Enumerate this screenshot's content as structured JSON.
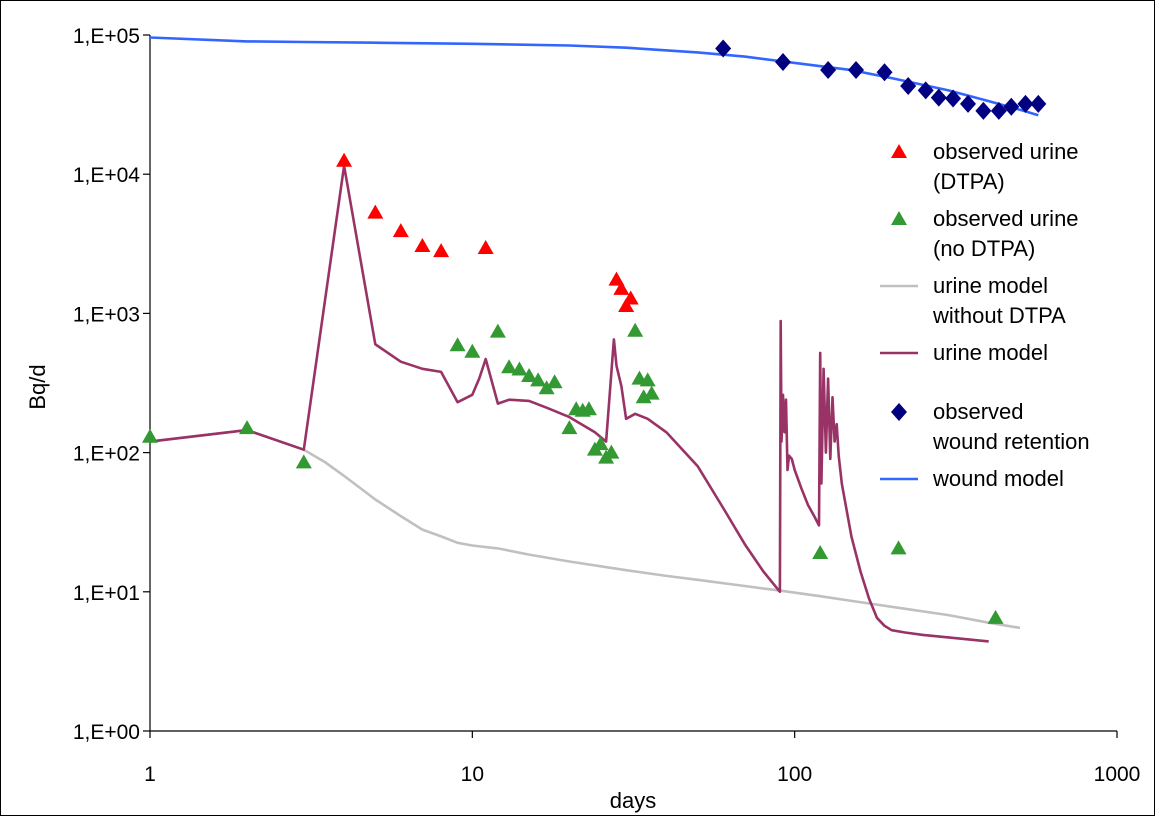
{
  "chart_data": {
    "type": "scatter",
    "xlabel": "days",
    "ylabel": "Bq/d",
    "x_scale": "log",
    "y_scale": "log",
    "xlim": [
      1,
      1000
    ],
    "ylim": [
      1,
      100000
    ],
    "x_ticks": [
      {
        "value": 1,
        "label": "1"
      },
      {
        "value": 10,
        "label": "10"
      },
      {
        "value": 100,
        "label": "100"
      },
      {
        "value": 1000,
        "label": "1000"
      }
    ],
    "y_ticks": [
      {
        "value": 1,
        "label": "1,E+00"
      },
      {
        "value": 10,
        "label": "1,E+01"
      },
      {
        "value": 100,
        "label": "1,E+02"
      },
      {
        "value": 1000,
        "label": "1,E+03"
      },
      {
        "value": 10000,
        "label": "1,E+04"
      },
      {
        "value": 100000,
        "label": "1,E+05"
      }
    ],
    "grid": false,
    "legend_position": "right",
    "series": [
      {
        "name": "observed urine (DTPA)",
        "legend_lines": [
          "observed urine",
          "(DTPA)"
        ],
        "kind": "markers",
        "marker": "triangle",
        "color": "#ff0000",
        "x": [
          4,
          5,
          6,
          7,
          8,
          11,
          28,
          29,
          30,
          31
        ],
        "y": [
          12500,
          5300,
          3900,
          3050,
          2800,
          2950,
          1750,
          1500,
          1130,
          1280
        ]
      },
      {
        "name": "observed urine (no DTPA)",
        "legend_lines": [
          "observed urine",
          "(no DTPA)"
        ],
        "kind": "markers",
        "marker": "triangle",
        "color": "#339933",
        "x": [
          1,
          2,
          3,
          9,
          10,
          12,
          13,
          14,
          15,
          16,
          17,
          18,
          20,
          21,
          22,
          23,
          24,
          25,
          26,
          27,
          32,
          33,
          34,
          35,
          36,
          120,
          210,
          420
        ],
        "y": [
          130,
          150,
          85,
          590,
          530,
          740,
          410,
          395,
          355,
          330,
          290,
          320,
          150,
          205,
          200,
          205,
          105,
          115,
          92,
          100,
          750,
          340,
          250,
          330,
          265,
          19,
          20.5,
          6.5
        ]
      },
      {
        "name": "urine model without DTPA",
        "legend_lines": [
          "urine model",
          "without DTPA"
        ],
        "kind": "line",
        "color": "#c0c0c0",
        "x": [
          1,
          2,
          3,
          3.5,
          4,
          5,
          6,
          7,
          8,
          9,
          10,
          12,
          15,
          20,
          30,
          40,
          50,
          70,
          90,
          120,
          150,
          200,
          300,
          400,
          500
        ],
        "y": [
          120,
          145,
          105,
          85,
          68,
          46,
          35,
          28,
          25,
          22.5,
          21.5,
          20.5,
          18.5,
          16.5,
          14.3,
          13,
          12.2,
          11,
          10.2,
          9.3,
          8.6,
          7.8,
          6.8,
          6,
          5.5
        ]
      },
      {
        "name": "urine model",
        "legend_lines": [
          "urine model"
        ],
        "kind": "line",
        "color": "#993366",
        "x": [
          1,
          2,
          3,
          4,
          5,
          6,
          7,
          8,
          9,
          10,
          10.5,
          11,
          12,
          13,
          15,
          17,
          20,
          24,
          26,
          27.5,
          28,
          29,
          30,
          32,
          35,
          40,
          50,
          60,
          70,
          80,
          90,
          90.5,
          91,
          92,
          93,
          94,
          95,
          96,
          98,
          100,
          105,
          110,
          115,
          119,
          120,
          121,
          123,
          125,
          127,
          129,
          131,
          133,
          135,
          137,
          140,
          150,
          160,
          170,
          180,
          190,
          200,
          220,
          250,
          300,
          400
        ],
        "y": [
          120,
          145,
          105,
          11500,
          600,
          450,
          400,
          380,
          230,
          260,
          340,
          470,
          225,
          240,
          235,
          210,
          180,
          140,
          120,
          650,
          420,
          300,
          175,
          190,
          175,
          140,
          80,
          40,
          22,
          14,
          10,
          880,
          120,
          260,
          140,
          240,
          75,
          95,
          90,
          75,
          55,
          42,
          35,
          30,
          520,
          60,
          400,
          100,
          340,
          90,
          250,
          120,
          160,
          95,
          60,
          25,
          14,
          9,
          6.5,
          5.7,
          5.3,
          5.1,
          4.9,
          4.7,
          4.4
        ]
      },
      {
        "name": "observed wound retention",
        "legend_lines": [
          "observed",
          "wound retention"
        ],
        "kind": "markers",
        "marker": "diamond",
        "color": "#000080",
        "x": [
          60,
          92,
          127,
          155,
          190,
          225,
          255,
          280,
          310,
          345,
          385,
          430,
          470,
          520,
          570
        ],
        "y": [
          80000,
          64000,
          56000,
          56000,
          54000,
          43000,
          40000,
          35500,
          35000,
          32000,
          28500,
          28500,
          30500,
          32000,
          32000
        ]
      },
      {
        "name": "wound model",
        "legend_lines": [
          "wound model"
        ],
        "kind": "line",
        "color": "#3366ff",
        "x": [
          1,
          2,
          3,
          5,
          10,
          20,
          30,
          50,
          70,
          100,
          150,
          200,
          300,
          400,
          500,
          570
        ],
        "y": [
          96000,
          90000,
          89000,
          88000,
          86500,
          84000,
          81000,
          75000,
          70000,
          63000,
          56000,
          49000,
          40000,
          33500,
          29000,
          26500
        ]
      }
    ]
  }
}
